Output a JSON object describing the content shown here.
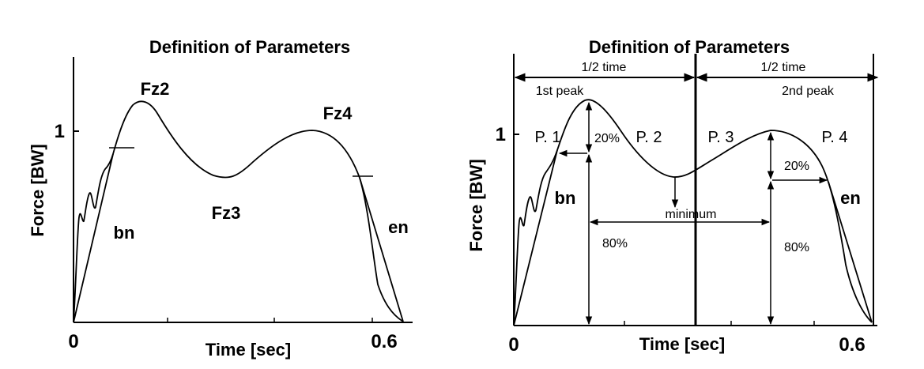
{
  "left_panel": {
    "title": "Definition of Parameters",
    "ylabel": "Force [BW]",
    "xlabel": "Time [sec]",
    "tick_x0": "0",
    "tick_x1": "0.6",
    "tick_y1": "1",
    "labels": {
      "fz2": "Fz2",
      "fz3": "Fz3",
      "fz4": "Fz4",
      "bn": "bn",
      "en": "en"
    }
  },
  "right_panel": {
    "title": "Definition of Parameters",
    "ylabel": "Force [BW]",
    "xlabel": "Time [sec]",
    "tick_x0": "0",
    "tick_x1": "0.6",
    "tick_y1": "1",
    "half_time_left": "1/2 time",
    "half_time_right": "1/2 time",
    "first_peak": "1st peak",
    "second_peak": "2nd peak",
    "phases": [
      "P. 1",
      "P. 2",
      "P. 3",
      "P. 4"
    ],
    "pct_20_left": "20%",
    "pct_20_right": "20%",
    "pct_80_left": "80%",
    "pct_80_right": "80%",
    "minimum": "minimum",
    "bn": "bn",
    "en": "en"
  }
}
